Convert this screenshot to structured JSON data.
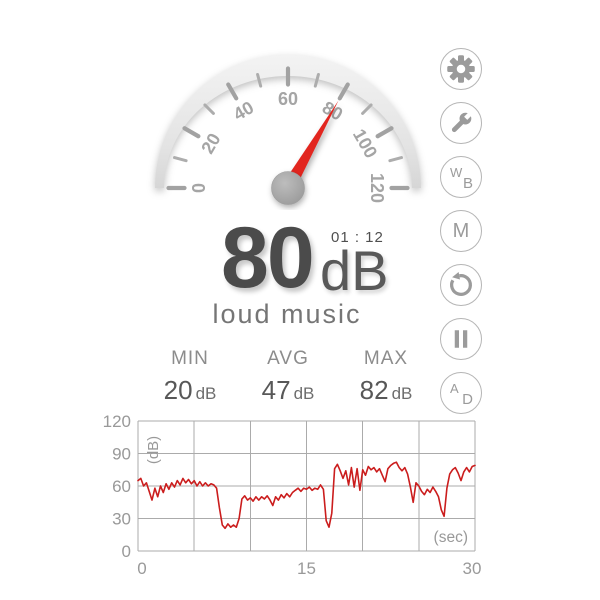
{
  "reading": {
    "value": "80",
    "unit": "dB",
    "timer": "01 : 12",
    "noise_label": "loud music"
  },
  "gauge": {
    "min": 0,
    "max": 120,
    "value": 80,
    "major_ticks": [
      0,
      20,
      40,
      60,
      80,
      100,
      120
    ],
    "minor_ticks": [
      10,
      30,
      50,
      70,
      90,
      110
    ],
    "labels": [
      "0",
      "20",
      "40",
      "60",
      "80",
      "100",
      "120"
    ],
    "needle_color": "#e2261f",
    "tick_color": "#a2a2a2",
    "minor_tick_color": "#adadad",
    "label_color": "#a5a5a5"
  },
  "stats": {
    "items": [
      {
        "label": "MIN",
        "value": "20",
        "unit": "dB"
      },
      {
        "label": "AVG",
        "value": "47",
        "unit": "dB"
      },
      {
        "label": "MAX",
        "value": "82",
        "unit": "dB"
      }
    ]
  },
  "sidebar": {
    "buttons": [
      {
        "name": "settings",
        "icon": "gear-icon"
      },
      {
        "name": "calibration",
        "icon": "wrench-icon"
      },
      {
        "name": "weighting",
        "letters": [
          "W",
          "B"
        ]
      },
      {
        "name": "max-hold",
        "letter": "M"
      },
      {
        "name": "reset",
        "icon": "reset-icon"
      },
      {
        "name": "pause",
        "icon": "pause-icon"
      },
      {
        "name": "display-mode",
        "letters": [
          "A",
          "D"
        ]
      }
    ]
  },
  "chart_data": {
    "type": "line",
    "title": "",
    "xlabel": "(sec)",
    "ylabel": "(dB)",
    "xlim": [
      0,
      30
    ],
    "ylim": [
      0,
      120
    ],
    "x_ticks": [
      0,
      15,
      30
    ],
    "y_ticks": [
      0,
      30,
      60,
      90,
      120
    ],
    "grid_x_step": 5,
    "grid_y_step": 30,
    "grid": true,
    "legend": false,
    "line_color": "#cb1d1d",
    "grid_color": "#ababab",
    "tick_label_color": "#999999",
    "x": [
      0,
      0.25,
      0.5,
      0.75,
      1,
      1.25,
      1.5,
      1.75,
      2,
      2.25,
      2.5,
      2.75,
      3,
      3.25,
      3.5,
      3.75,
      4,
      4.25,
      4.5,
      4.75,
      5,
      5.25,
      5.5,
      5.75,
      6,
      6.25,
      6.5,
      6.75,
      7,
      7.25,
      7.5,
      7.75,
      8,
      8.25,
      8.5,
      8.75,
      9,
      9.25,
      9.5,
      9.75,
      10,
      10.25,
      10.5,
      10.75,
      11,
      11.25,
      11.5,
      11.75,
      12,
      12.25,
      12.5,
      12.75,
      13,
      13.25,
      13.5,
      13.75,
      14,
      14.25,
      14.5,
      14.75,
      15,
      15.25,
      15.5,
      15.75,
      16,
      16.25,
      16.5,
      16.75,
      17,
      17.25,
      17.5,
      17.75,
      18,
      18.25,
      18.5,
      18.75,
      19,
      19.25,
      19.5,
      19.75,
      20,
      20.25,
      20.5,
      20.75,
      21,
      21.25,
      21.5,
      21.75,
      22,
      22.25,
      22.5,
      22.75,
      23,
      23.25,
      23.5,
      23.75,
      24,
      24.25,
      24.5,
      24.75,
      25,
      25.25,
      25.5,
      25.75,
      26,
      26.25,
      26.5,
      26.75,
      27,
      27.25,
      27.5,
      27.75,
      28,
      28.25,
      28.5,
      28.75,
      29,
      29.25,
      29.5,
      29.75,
      30
    ],
    "y": [
      65,
      67,
      60,
      63,
      55,
      47,
      58,
      50,
      60,
      54,
      62,
      57,
      63,
      59,
      65,
      61,
      67,
      63,
      66,
      62,
      65,
      60,
      64,
      60,
      63,
      60,
      62,
      61,
      58,
      40,
      24,
      21,
      25,
      22,
      24,
      22,
      30,
      48,
      51,
      47,
      49,
      46,
      50,
      47,
      50,
      48,
      51,
      47,
      42,
      50,
      47,
      52,
      49,
      53,
      50,
      54,
      56,
      58,
      55,
      58,
      57,
      59,
      56,
      58,
      57,
      61,
      57,
      28,
      22,
      35,
      76,
      80,
      74,
      67,
      74,
      61,
      77,
      59,
      76,
      56,
      75,
      70,
      78,
      75,
      77,
      73,
      76,
      70,
      64,
      76,
      79,
      81,
      82,
      77,
      74,
      77,
      71,
      59,
      45,
      63,
      60,
      55,
      52,
      57,
      54,
      59,
      55,
      50,
      38,
      32,
      58,
      71,
      75,
      77,
      72,
      65,
      73,
      77,
      73,
      78,
      79
    ]
  }
}
